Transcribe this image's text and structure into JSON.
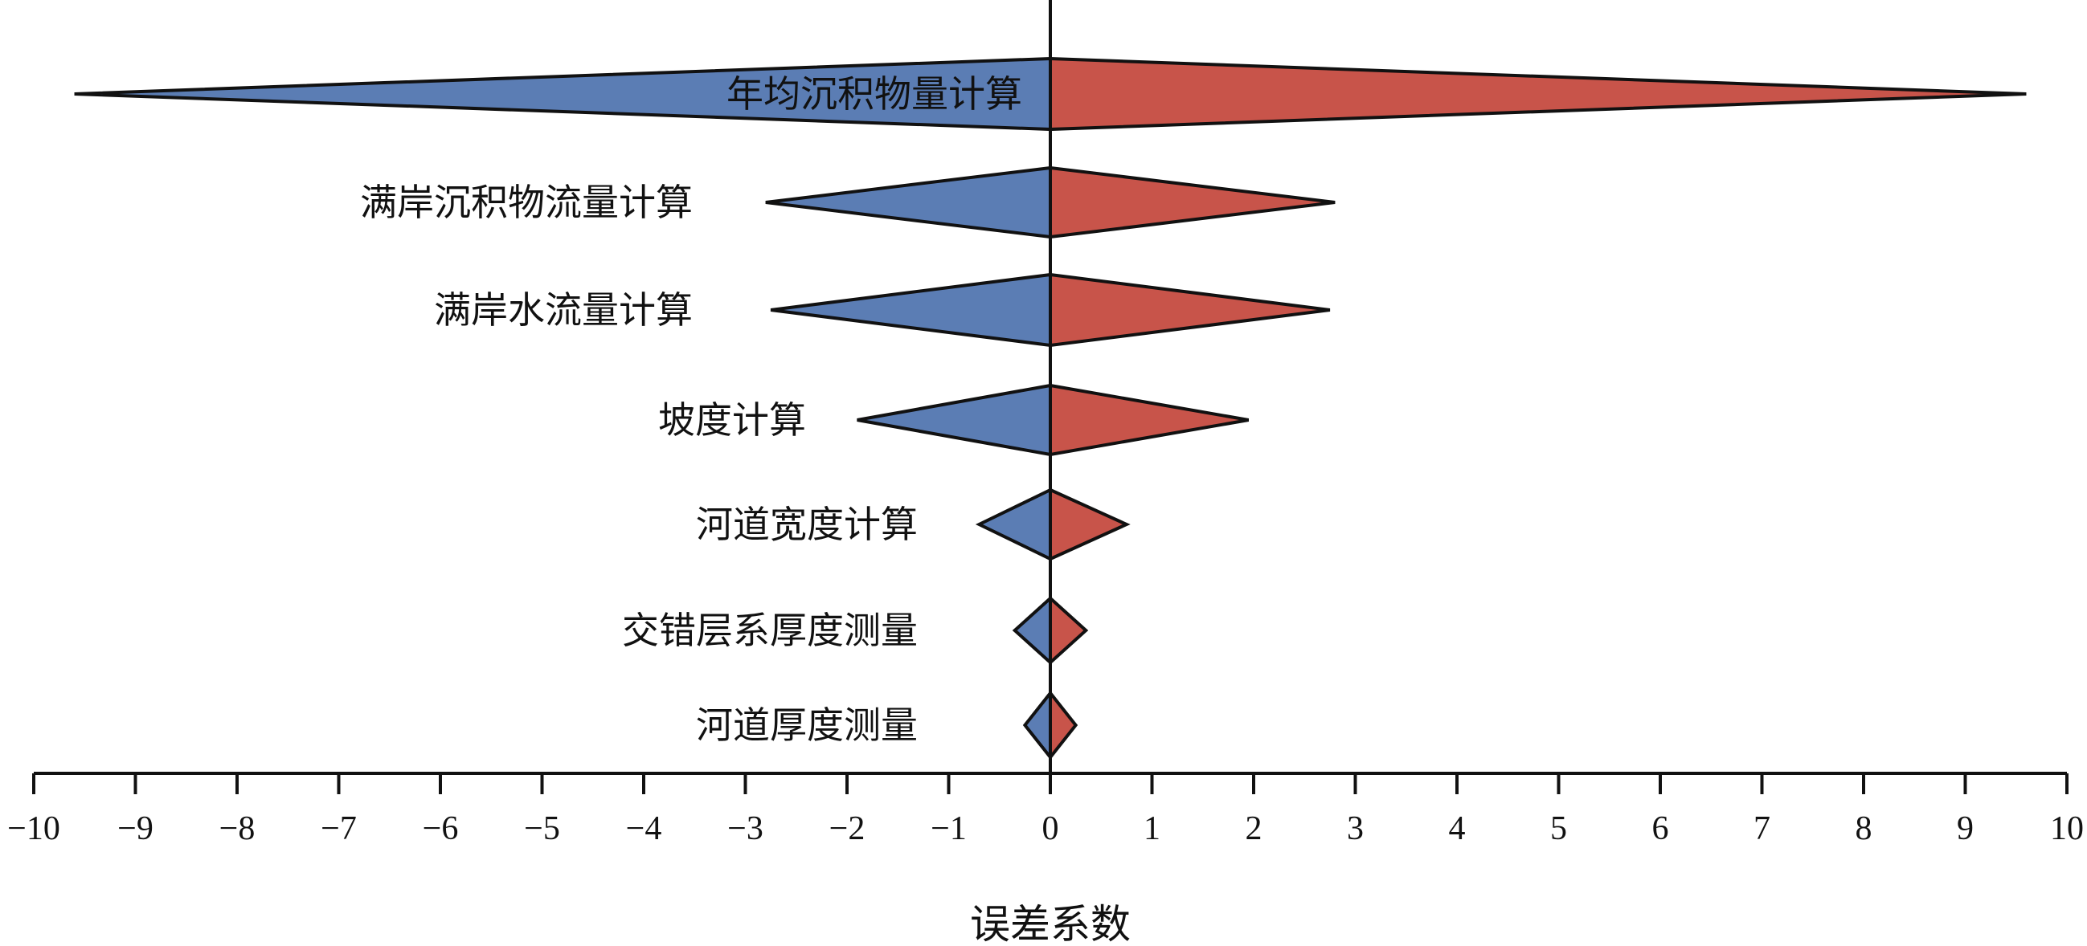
{
  "chart_data": {
    "type": "bar",
    "xlabel": "误差系数",
    "xlim": [
      -10,
      10
    ],
    "xticks": [
      "−10",
      "−9",
      "−8",
      "−7",
      "−6",
      "−5",
      "−4",
      "−3",
      "−2",
      "−1",
      "0",
      "1",
      "2",
      "3",
      "4",
      "5",
      "6",
      "7",
      "8",
      "9",
      "10"
    ],
    "colors": {
      "negative": "#5b7db4",
      "positive": "#c8544a",
      "outline": "#111111"
    },
    "categories": [
      "年均沉积物量计算",
      "满岸沉积物流量计算",
      "满岸水流量计算",
      "坡度计算",
      "河道宽度计算",
      "交错层系厚度测量",
      "河道厚度测量"
    ],
    "series": [
      {
        "values": [
          -9.6,
          -2.8,
          -2.75,
          -1.9,
          -0.7,
          -0.35,
          -0.25
        ]
      },
      {
        "values": [
          9.6,
          2.8,
          2.75,
          1.95,
          0.75,
          0.35,
          0.25
        ]
      }
    ]
  }
}
